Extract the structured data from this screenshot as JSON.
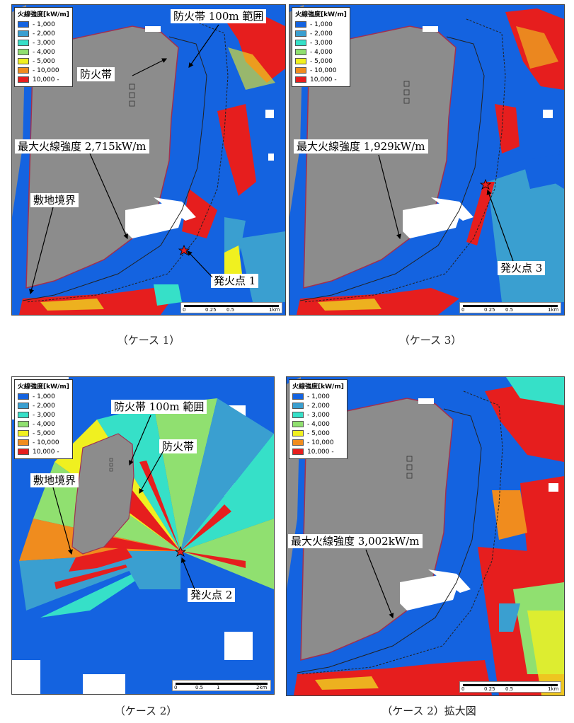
{
  "legend": {
    "title": "火線強度[kW/m]",
    "items": [
      {
        "label": "- 1,000",
        "color": "#1463e0"
      },
      {
        "label": "- 2,000",
        "color": "#3a9fd0"
      },
      {
        "label": "- 3,000",
        "color": "#36e0c8"
      },
      {
        "label": "- 4,000",
        "color": "#90e070"
      },
      {
        "label": "- 5,000",
        "color": "#f0f020"
      },
      {
        "label": "- 10,000",
        "color": "#f08c1e"
      },
      {
        "label": "10,000 -",
        "color": "#e61e1e"
      }
    ]
  },
  "panels": {
    "case1": {
      "caption": "（ケース 1）",
      "labels": {
        "zone_100m": "防火帯 100m 範囲",
        "firebreak": "防火帯",
        "max_intensity": "最大火線強度 2,715kW/m",
        "site_boundary": "敷地境界",
        "ignition": "発火点 1"
      },
      "scale": [
        "0",
        "0.25",
        "0.5",
        "1km"
      ]
    },
    "case3": {
      "caption": "（ケース 3）",
      "labels": {
        "max_intensity": "最大火線強度 1,929kW/m",
        "ignition": "発火点 3"
      },
      "scale": [
        "0",
        "0.25",
        "0.5",
        "1km"
      ]
    },
    "case2": {
      "caption": "（ケース 2）",
      "labels": {
        "zone_100m": "防火帯 100m 範囲",
        "firebreak": "防火帯",
        "site_boundary": "敷地境界",
        "ignition": "発火点 2"
      },
      "scale": [
        "0",
        "0.5",
        "1",
        "2km"
      ]
    },
    "case2_zoom": {
      "caption": "（ケース 2）拡大図",
      "labels": {
        "max_intensity": "最大火線強度 3,002kW/m"
      },
      "scale": [
        "0",
        "0.25",
        "0.5",
        "1km"
      ]
    }
  }
}
